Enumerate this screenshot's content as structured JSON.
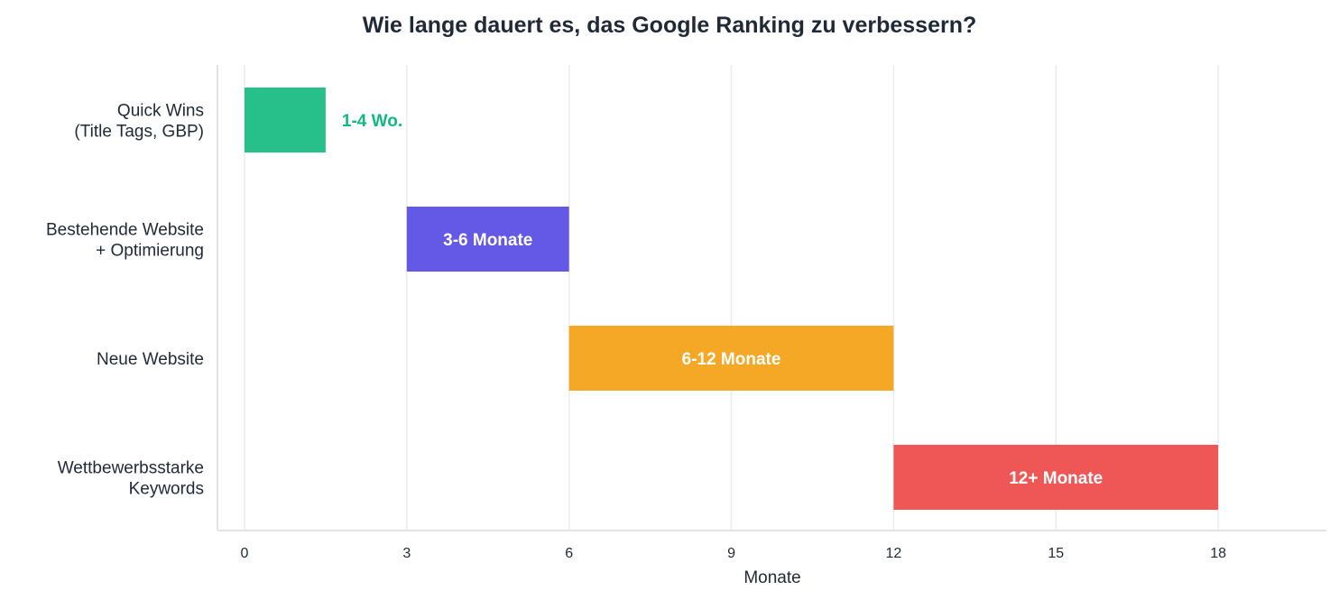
{
  "chart_data": {
    "type": "bar",
    "orientation": "horizontal",
    "title": "Wie lange dauert es, das Google Ranking zu verbessern?",
    "xlabel": "Monate",
    "ylabel": "",
    "xlim": [
      -0.5,
      20
    ],
    "xticks": [
      0,
      3,
      6,
      9,
      12,
      15,
      18
    ],
    "xtick_labels": [
      "0",
      "3",
      "6",
      "9",
      "12",
      "15",
      "18"
    ],
    "grid": "vertical",
    "categories": [
      [
        "Quick Wins",
        "(Title Tags, GBP)"
      ],
      [
        "Bestehende Website",
        "+ Optimierung"
      ],
      [
        "Neue Website"
      ],
      [
        "Wettbewerbsstarke",
        "Keywords"
      ]
    ],
    "bars": [
      {
        "start": 0,
        "end": 1.5,
        "color": "#28c08a",
        "label": "1-4 Wo.",
        "label_position": "outside",
        "label_color": "#10b981"
      },
      {
        "start": 3,
        "end": 6,
        "color": "#6359e6",
        "label": "3-6 Monate",
        "label_position": "inside",
        "label_color": "#ffffff"
      },
      {
        "start": 6,
        "end": 12,
        "color": "#f5a726",
        "label": "6-12 Monate",
        "label_position": "inside",
        "label_color": "#ffffff"
      },
      {
        "start": 12,
        "end": 18,
        "color": "#ef5757",
        "label": "12+ Monate",
        "label_position": "inside",
        "label_color": "#ffffff"
      }
    ]
  }
}
